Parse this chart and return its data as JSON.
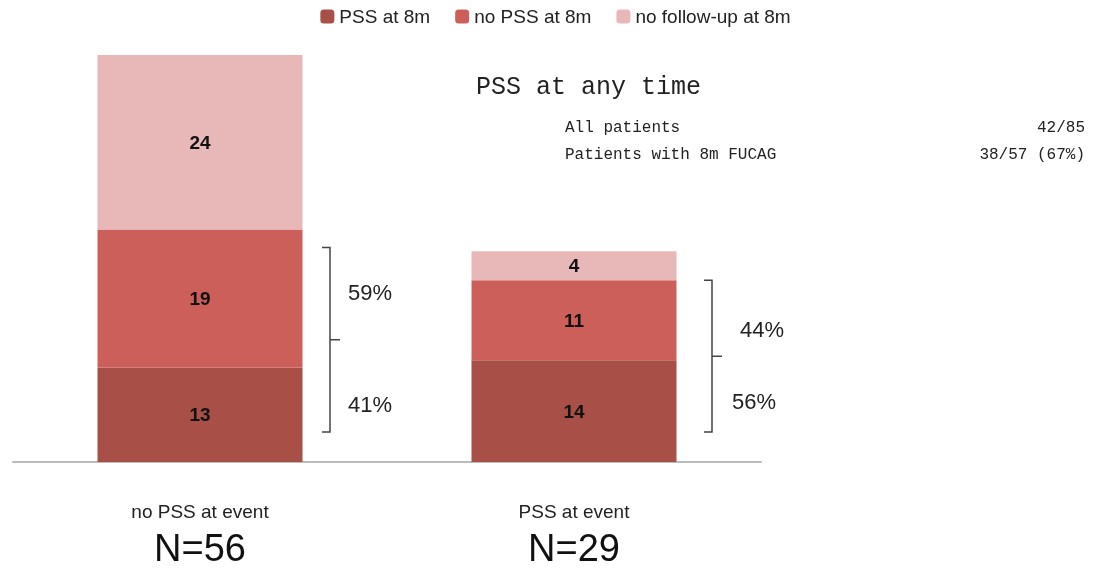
{
  "chart_data": {
    "type": "bar",
    "stacked": true,
    "data_labels": true,
    "legend": "top",
    "categories": [
      "no PSS at event",
      "PSS at event"
    ],
    "series": [
      {
        "name": "PSS at 8m",
        "color": "#a84f48",
        "values": [
          13,
          14
        ]
      },
      {
        "name": "no PSS at 8m",
        "color": "#cd5f5a",
        "values": [
          19,
          11
        ]
      },
      {
        "name": "no follow-up at 8m",
        "color": "#e8b8b8",
        "values": [
          24,
          4
        ]
      }
    ],
    "annotations": [
      "59%",
      "41%",
      "44%",
      "56%",
      "N=56",
      "N=29",
      "PSS at any time",
      "All patients",
      "42/85",
      "Patients with 8m FUCAG",
      "38/57 (67%)"
    ]
  }
}
